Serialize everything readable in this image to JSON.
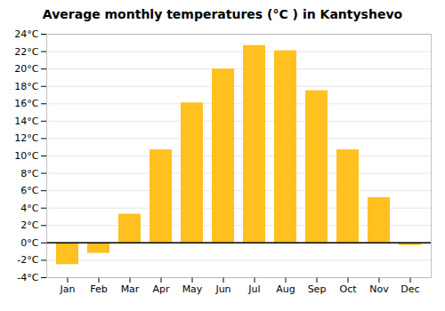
{
  "chart_data": {
    "type": "bar",
    "title": "Average monthly temperatures (°C ) in Kantyshevo",
    "categories": [
      "Jan",
      "Feb",
      "Mar",
      "Apr",
      "May",
      "Jun",
      "Jul",
      "Aug",
      "Sep",
      "Oct",
      "Nov",
      "Dec"
    ],
    "values": [
      -2.5,
      -1.2,
      3.3,
      10.7,
      16.1,
      20.0,
      22.7,
      22.1,
      17.5,
      10.7,
      5.2,
      -0.3
    ],
    "color": "#FFC020",
    "ylim": [
      -4,
      24
    ],
    "yticks": [
      {
        "value": -4,
        "label": "-4°C"
      },
      {
        "value": -2,
        "label": "-2°C"
      },
      {
        "value": 0,
        "label": "0°C"
      },
      {
        "value": 2,
        "label": "2°C"
      },
      {
        "value": 4,
        "label": "4°C"
      },
      {
        "value": 6,
        "label": "6°C"
      },
      {
        "value": 8,
        "label": "8°C"
      },
      {
        "value": 10,
        "label": "10°C"
      },
      {
        "value": 12,
        "label": "12°C"
      },
      {
        "value": 14,
        "label": "14°C"
      },
      {
        "value": 16,
        "label": "16°C"
      },
      {
        "value": 18,
        "label": "18°C"
      },
      {
        "value": 20,
        "label": "20°C"
      },
      {
        "value": 22,
        "label": "22°C"
      },
      {
        "value": 24,
        "label": "24°C"
      }
    ],
    "grid": true
  }
}
